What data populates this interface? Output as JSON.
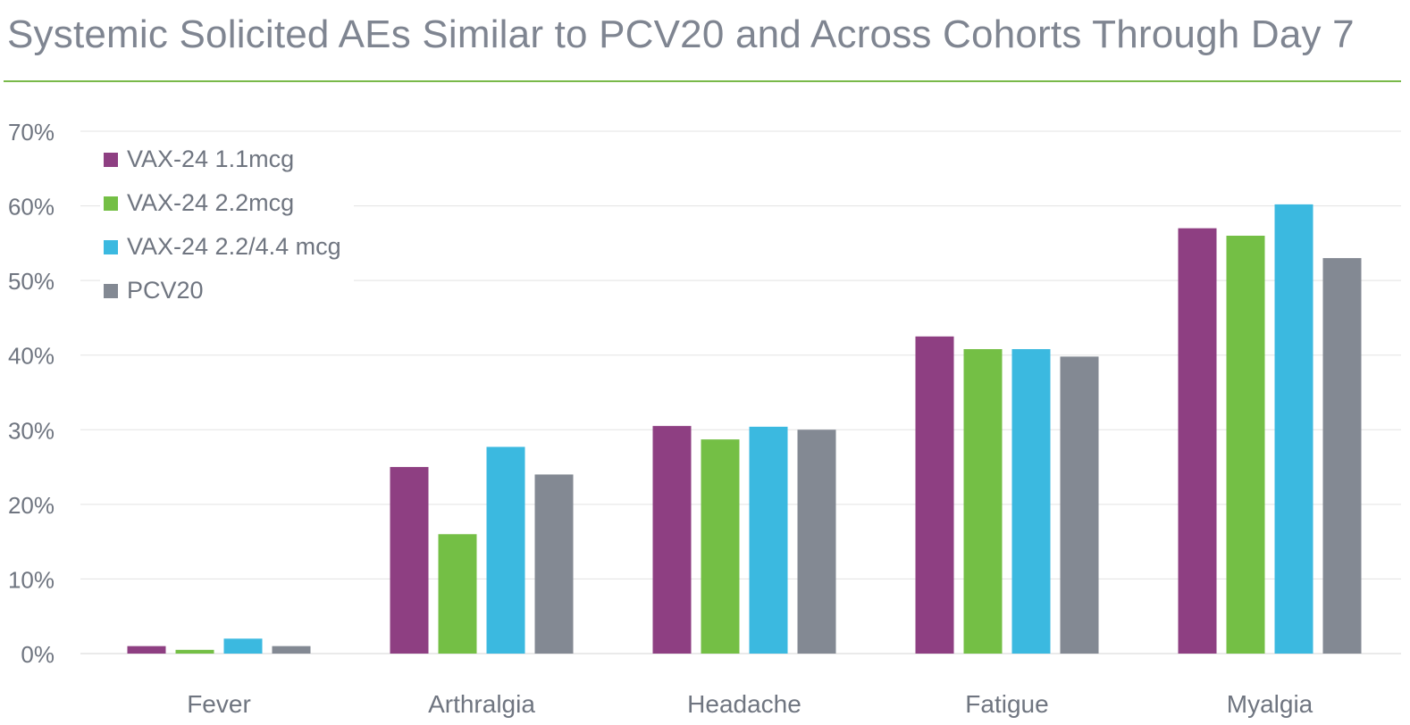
{
  "title": "Systemic Solicited AEs Similar to PCV20 and Across Cohorts Through Day 7",
  "colors": {
    "title_rule": "#79b94a",
    "gridline": "#e3e3e3",
    "axis_text": "#6f7580"
  },
  "chart_data": {
    "type": "bar",
    "title": "Systemic Solicited AEs Similar to PCV20 and Across Cohorts Through Day 7",
    "xlabel": "",
    "ylabel": "",
    "ylim": [
      0,
      70
    ],
    "yticks": [
      0,
      10,
      20,
      30,
      40,
      50,
      60,
      70
    ],
    "ytick_labels": [
      "0%",
      "10%",
      "20%",
      "30%",
      "40%",
      "50%",
      "60%",
      "70%"
    ],
    "grid": true,
    "legend_position": "top-left",
    "categories": [
      "Fever",
      "Arthralgia",
      "Headache",
      "Fatigue",
      "Myalgia"
    ],
    "series": [
      {
        "name": "VAX-24 1.1mcg",
        "color": "#8e3f82",
        "values": [
          1,
          25,
          30.5,
          42.5,
          57
        ]
      },
      {
        "name": "VAX-24 2.2mcg",
        "color": "#74bf45",
        "values": [
          0.5,
          16,
          28.7,
          40.8,
          56
        ]
      },
      {
        "name": "VAX-24 2.2/4.4 mcg",
        "color": "#3bb9e0",
        "values": [
          2,
          27.7,
          30.4,
          40.8,
          60.2
        ]
      },
      {
        "name": "PCV20",
        "color": "#838993",
        "values": [
          1,
          24,
          30,
          39.8,
          53
        ]
      }
    ]
  }
}
